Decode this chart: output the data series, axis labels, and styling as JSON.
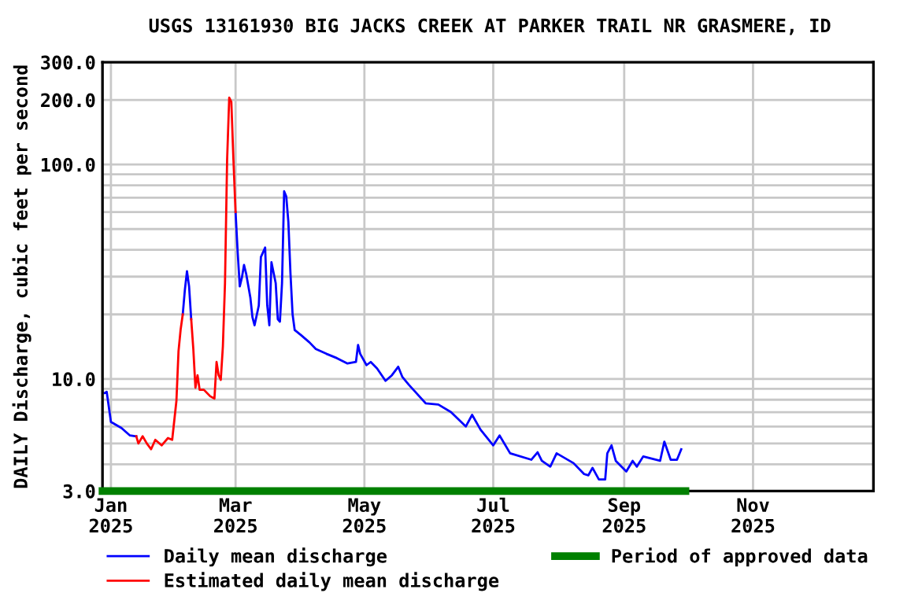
{
  "chart_data": {
    "type": "line",
    "title": "USGS 13161930 BIG JACKS CREEK AT PARKER TRAIL NR GRASMERE, ID",
    "ylabel": "DAILY Discharge, cubic feet per second",
    "log": "y",
    "grid": true,
    "legend": "bottom",
    "line_style": "solid",
    "marker": "none",
    "xlim": [
      "2024-12-28",
      "2025-12-28"
    ],
    "xticks": [
      {
        "value": "2025-01-01",
        "label": "Jan\n2025"
      },
      {
        "value": "2025-03-01",
        "label": "Mar\n2025"
      },
      {
        "value": "2025-05-01",
        "label": "May\n2025"
      },
      {
        "value": "2025-07-01",
        "label": "Jul\n2025"
      },
      {
        "value": "2025-09-01",
        "label": "Sep\n2025"
      },
      {
        "value": "2025-11-01",
        "label": "Nov\n2025"
      }
    ],
    "ylim": [
      3,
      300
    ],
    "yticks": [
      {
        "value": 3,
        "label": "3.0"
      },
      {
        "value": 4,
        "label": null
      },
      {
        "value": 5,
        "label": null
      },
      {
        "value": 6,
        "label": null
      },
      {
        "value": 7,
        "label": null
      },
      {
        "value": 8,
        "label": null
      },
      {
        "value": 9,
        "label": null
      },
      {
        "value": 10,
        "label": "10.0"
      },
      {
        "value": 20,
        "label": null
      },
      {
        "value": 30,
        "label": null
      },
      {
        "value": 40,
        "label": null
      },
      {
        "value": 50,
        "label": null
      },
      {
        "value": 60,
        "label": null
      },
      {
        "value": 70,
        "label": null
      },
      {
        "value": 80,
        "label": null
      },
      {
        "value": 90,
        "label": null
      },
      {
        "value": 100,
        "label": "100.0"
      },
      {
        "value": 200,
        "label": "200.0"
      },
      {
        "value": 300,
        "label": "300.0"
      }
    ],
    "series": [
      {
        "name": "Daily mean discharge",
        "color": "#0000ff",
        "x": [
          "2024-12-29",
          "2024-12-30",
          "2025-01-01",
          "2025-01-06",
          "2025-01-10",
          "2025-01-13",
          "2025-01-14",
          "2025-02-04",
          "2025-02-05",
          "2025-02-06",
          "2025-02-07",
          "2025-02-08",
          "2025-02-09",
          "2025-03-01",
          "2025-03-02",
          "2025-03-03",
          "2025-03-04",
          "2025-03-05",
          "2025-03-06",
          "2025-03-08",
          "2025-03-09",
          "2025-03-10",
          "2025-03-12",
          "2025-03-13",
          "2025-03-15",
          "2025-03-16",
          "2025-03-17",
          "2025-03-18",
          "2025-03-20",
          "2025-03-21",
          "2025-03-22",
          "2025-03-23",
          "2025-03-24",
          "2025-03-25",
          "2025-03-26",
          "2025-03-27",
          "2025-03-28",
          "2025-03-29",
          "2025-04-01",
          "2025-04-05",
          "2025-04-08",
          "2025-04-13",
          "2025-04-18",
          "2025-04-23",
          "2025-04-27",
          "2025-04-28",
          "2025-04-29",
          "2025-05-02",
          "2025-05-04",
          "2025-05-07",
          "2025-05-11",
          "2025-05-14",
          "2025-05-17",
          "2025-05-19",
          "2025-05-22",
          "2025-05-30",
          "2025-06-05",
          "2025-06-11",
          "2025-06-18",
          "2025-06-21",
          "2025-06-25",
          "2025-07-01",
          "2025-07-04",
          "2025-07-09",
          "2025-07-19",
          "2025-07-22",
          "2025-07-24",
          "2025-07-28",
          "2025-07-31",
          "2025-08-08",
          "2025-08-13",
          "2025-08-15",
          "2025-08-17",
          "2025-08-20",
          "2025-08-23",
          "2025-08-24",
          "2025-08-26",
          "2025-08-28",
          "2025-09-02",
          "2025-09-05",
          "2025-09-07",
          "2025-09-10",
          "2025-09-18",
          "2025-09-20",
          "2025-09-23",
          "2025-09-26",
          "2025-09-28"
        ],
        "values": [
          8.6,
          8.7,
          6.3,
          5.9,
          5.45,
          5.4,
          null,
          20,
          26,
          31.8,
          27,
          19,
          null,
          60,
          39,
          27,
          29.7,
          34,
          31,
          24,
          19.4,
          17.8,
          22,
          37,
          41,
          22,
          17.8,
          35,
          28,
          19,
          18.5,
          28,
          75,
          71,
          54,
          31,
          20,
          16.9,
          16,
          14.8,
          13.8,
          13.1,
          12.5,
          11.8,
          12,
          14.4,
          13.1,
          11.6,
          12,
          11.2,
          9.8,
          10.4,
          11.4,
          10.2,
          9.4,
          7.7,
          7.6,
          7.0,
          6.0,
          6.8,
          5.8,
          4.9,
          5.45,
          4.5,
          4.2,
          4.55,
          4.15,
          3.9,
          4.5,
          4.05,
          3.6,
          3.55,
          3.85,
          3.4,
          3.4,
          4.5,
          4.9,
          4.15,
          3.7,
          4.15,
          3.9,
          4.35,
          4.15,
          5.1,
          4.2,
          4.2,
          4.7
        ]
      },
      {
        "name": "Estimated daily mean discharge",
        "color": "#ff0000",
        "x": [
          "2025-01-13",
          "2025-01-14",
          "2025-01-16",
          "2025-01-18",
          "2025-01-20",
          "2025-01-22",
          "2025-01-25",
          "2025-01-28",
          "2025-01-30",
          "2025-02-01",
          "2025-02-02",
          "2025-02-03",
          "2025-02-04",
          null,
          "2025-02-08",
          "2025-02-09",
          "2025-02-10",
          "2025-02-11",
          "2025-02-12",
          "2025-02-14",
          "2025-02-17",
          "2025-02-19",
          "2025-02-20",
          "2025-02-21",
          "2025-02-22",
          "2025-02-23",
          "2025-02-24",
          "2025-02-25",
          "2025-02-26",
          "2025-02-27",
          "2025-02-28",
          "2025-03-01"
        ],
        "values": [
          5.4,
          5.0,
          5.4,
          5.0,
          4.7,
          5.2,
          4.9,
          5.3,
          5.2,
          7.9,
          13.5,
          17,
          20,
          null,
          19,
          13.8,
          9.1,
          10.4,
          8.9,
          8.9,
          8.3,
          8.1,
          12,
          10.4,
          9.9,
          14.2,
          28,
          105,
          205,
          196,
          105,
          60
        ]
      },
      {
        "name": "Period of approved data",
        "color": "#008000",
        "x": [
          "2024-12-28",
          "2025-09-30"
        ],
        "values": [
          3,
          3
        ]
      }
    ]
  }
}
